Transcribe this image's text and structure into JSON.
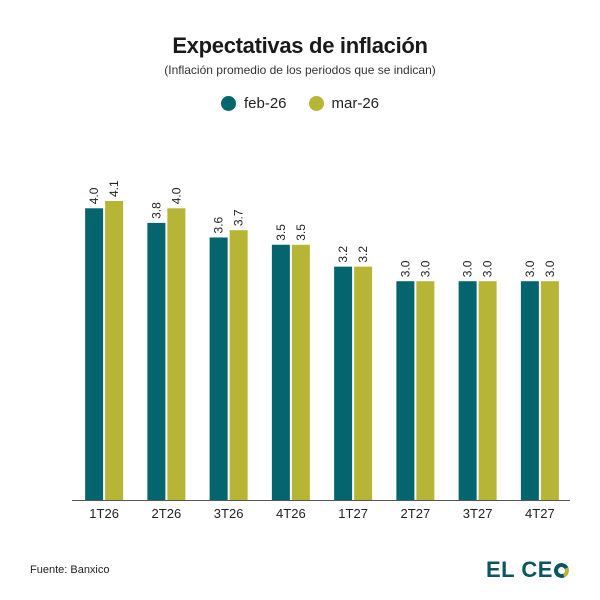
{
  "chart_data": {
    "type": "bar",
    "title": "Expectativas de inflación",
    "subtitle": "(Inflación promedio de los periodos que se indican)",
    "categories": [
      "1T26",
      "2T26",
      "3T26",
      "4T26",
      "1T27",
      "2T27",
      "3T27",
      "4T27"
    ],
    "series": [
      {
        "name": "feb-26",
        "color": "#05656f",
        "values": [
          4.0,
          3.8,
          3.6,
          3.5,
          3.2,
          3.0,
          3.0,
          3.0
        ]
      },
      {
        "name": "mar-26",
        "color": "#b7b535",
        "values": [
          4.1,
          4.0,
          3.7,
          3.5,
          3.2,
          3.0,
          3.0,
          3.0
        ]
      }
    ],
    "ylim": [
      0,
      4.1
    ],
    "grid": false,
    "legend": "top-center",
    "data_labels": true
  },
  "footer": {
    "source": "Fuente: Banxico",
    "logo_text": "EL CE"
  }
}
